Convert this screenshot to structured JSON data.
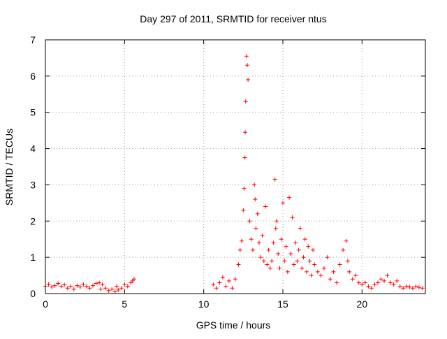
{
  "chart_data": {
    "type": "scatter",
    "title": "Day 297 of 2011, SRMTID for receiver ntus",
    "xlabel": "GPS time / hours",
    "ylabel": "SRMTID / TECUs",
    "xlim": [
      0,
      24
    ],
    "ylim": [
      0,
      7
    ],
    "xticks": [
      0,
      5,
      10,
      15,
      20
    ],
    "yticks": [
      0,
      1,
      2,
      3,
      4,
      5,
      6,
      7
    ],
    "grid": true,
    "marker": "+",
    "color": "#ff0000",
    "series": [
      {
        "name": "SRMTID",
        "x": [
          0.0,
          0.2,
          0.4,
          0.6,
          0.8,
          1.0,
          1.2,
          1.4,
          1.6,
          1.8,
          2.0,
          2.2,
          2.4,
          2.6,
          2.8,
          3.0,
          3.2,
          3.4,
          3.5,
          3.6,
          3.8,
          4.0,
          4.2,
          4.4,
          4.5,
          4.6,
          4.8,
          5.0,
          5.2,
          5.4,
          5.5,
          5.6,
          10.6,
          10.8,
          11.0,
          11.2,
          11.4,
          11.6,
          11.8,
          12.0,
          12.2,
          12.3,
          12.4,
          12.5,
          12.55,
          12.6,
          12.62,
          12.65,
          12.7,
          12.75,
          12.8,
          12.9,
          13.0,
          13.1,
          13.2,
          13.25,
          13.3,
          13.4,
          13.5,
          13.6,
          13.7,
          13.8,
          13.9,
          14.0,
          14.1,
          14.2,
          14.3,
          14.4,
          14.5,
          14.55,
          14.6,
          14.7,
          14.8,
          14.9,
          15.0,
          15.1,
          15.2,
          15.3,
          15.4,
          15.5,
          15.6,
          15.7,
          15.8,
          15.9,
          16.0,
          16.1,
          16.2,
          16.3,
          16.4,
          16.5,
          16.6,
          16.7,
          16.8,
          16.9,
          17.0,
          17.2,
          17.4,
          17.6,
          17.8,
          18.0,
          18.2,
          18.4,
          18.6,
          18.8,
          19.0,
          19.1,
          19.2,
          19.4,
          19.6,
          19.8,
          20.0,
          20.2,
          20.4,
          20.6,
          20.8,
          21.0,
          21.2,
          21.4,
          21.6,
          21.8,
          22.0,
          22.2,
          22.4,
          22.6,
          22.8,
          23.0,
          23.2,
          23.4,
          23.6,
          23.8
        ],
        "y": [
          0.2,
          0.25,
          0.18,
          0.22,
          0.28,
          0.2,
          0.24,
          0.15,
          0.2,
          0.12,
          0.22,
          0.18,
          0.25,
          0.2,
          0.15,
          0.22,
          0.28,
          0.3,
          0.12,
          0.25,
          0.15,
          0.08,
          0.12,
          0.05,
          0.2,
          0.1,
          0.15,
          0.25,
          0.2,
          0.3,
          0.35,
          0.4,
          0.25,
          0.15,
          0.3,
          0.45,
          0.2,
          0.35,
          0.15,
          0.4,
          0.8,
          1.2,
          1.45,
          2.3,
          2.9,
          3.75,
          4.45,
          5.3,
          6.55,
          6.3,
          5.9,
          2.0,
          1.5,
          1.2,
          3.0,
          2.6,
          1.8,
          2.2,
          1.4,
          1.0,
          1.6,
          0.9,
          2.4,
          0.8,
          1.2,
          0.7,
          0.9,
          1.4,
          3.15,
          1.8,
          2.0,
          1.1,
          0.7,
          1.5,
          2.5,
          0.9,
          1.3,
          0.6,
          2.65,
          1.1,
          2.1,
          0.8,
          1.4,
          0.9,
          1.2,
          1.8,
          0.7,
          1.0,
          1.5,
          0.6,
          1.3,
          0.9,
          0.5,
          1.2,
          0.8,
          0.6,
          0.5,
          0.7,
          1.0,
          0.4,
          0.6,
          0.3,
          0.8,
          1.2,
          1.45,
          0.9,
          0.6,
          0.4,
          0.5,
          0.3,
          0.25,
          0.3,
          0.2,
          0.15,
          0.25,
          0.3,
          0.4,
          0.35,
          0.5,
          0.3,
          0.25,
          0.35,
          0.2,
          0.15,
          0.2,
          0.18,
          0.15,
          0.2,
          0.17,
          0.15
        ]
      }
    ]
  }
}
